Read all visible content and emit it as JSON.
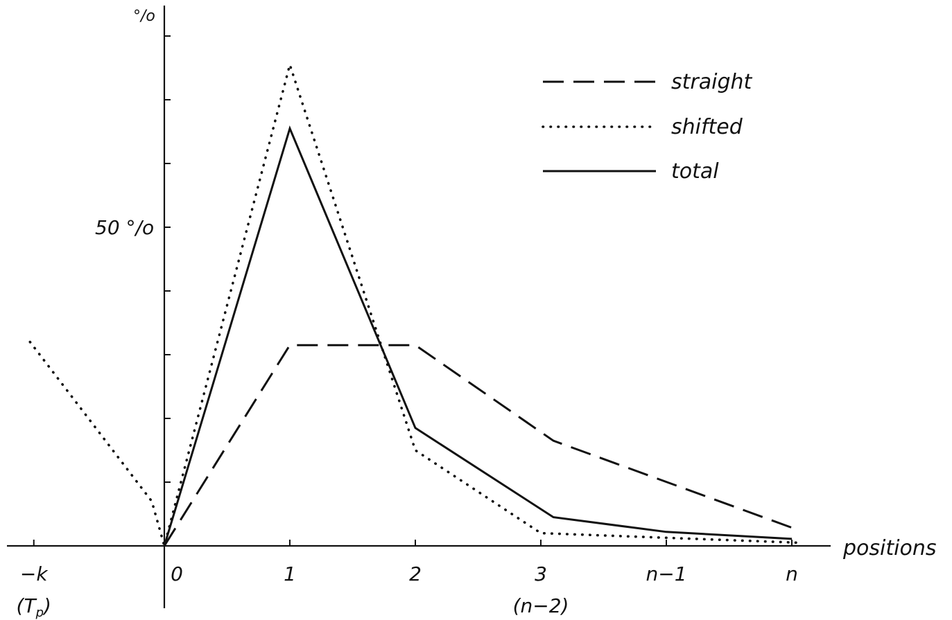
{
  "chart_data": {
    "type": "line",
    "xlabel": "positions",
    "ylabel": "°/o",
    "y_tick_label": "50 °/o",
    "y_tick_label_value": 50,
    "y_ticks": [
      10,
      20,
      30,
      40,
      50,
      60,
      70,
      80,
      90
    ],
    "ylim": [
      0,
      85
    ],
    "categories": [
      "−k",
      "0",
      "1",
      "2",
      "3",
      "n−1",
      "n"
    ],
    "sub_labels": [
      {
        "category": "−k",
        "text": "(T"
      },
      {
        "category": "3",
        "text": "(n−2)"
      }
    ],
    "sub_label_subscript": "p",
    "sub_label_suffix": ")",
    "legend_position": "top-right",
    "grid": false,
    "series": [
      {
        "name": "straight",
        "style": "dashed",
        "points": [
          [
            0,
            0
          ],
          [
            1,
            31.5
          ],
          [
            2,
            31.5
          ],
          [
            3.1,
            16.5
          ],
          [
            5.05,
            2.5
          ]
        ]
      },
      {
        "name": "shifted",
        "style": "dotted",
        "points": [
          [
            -1.07,
            32
          ],
          [
            -0.1,
            7
          ],
          [
            0,
            0
          ],
          [
            1,
            75.5
          ],
          [
            2,
            15
          ],
          [
            3,
            2
          ],
          [
            5.05,
            0.5
          ]
        ]
      },
      {
        "name": "total",
        "style": "solid",
        "points": [
          [
            0,
            0
          ],
          [
            1,
            65.5
          ],
          [
            2,
            18.5
          ],
          [
            3.1,
            4.5
          ],
          [
            4,
            2.2
          ],
          [
            5,
            1.1
          ]
        ]
      }
    ]
  }
}
